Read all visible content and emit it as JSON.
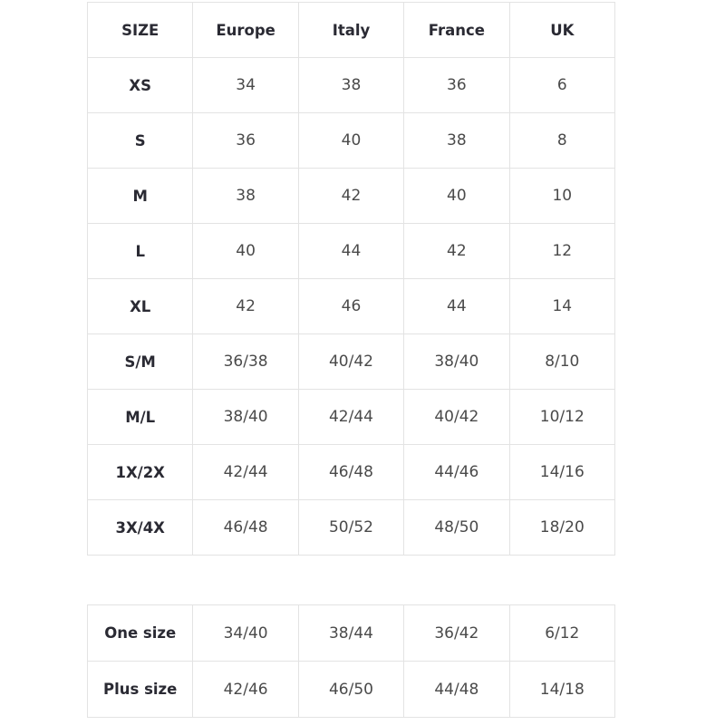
{
  "size_table": {
    "header": [
      "SIZE",
      "Europe",
      "Italy",
      "France",
      "UK"
    ],
    "rows": [
      [
        "XS",
        "34",
        "38",
        "36",
        "6"
      ],
      [
        "S",
        "36",
        "40",
        "38",
        "8"
      ],
      [
        "M",
        "38",
        "42",
        "40",
        "10"
      ],
      [
        "L",
        "40",
        "44",
        "42",
        "12"
      ],
      [
        "XL",
        "42",
        "46",
        "44",
        "14"
      ],
      [
        "S/M",
        "36/38",
        "40/42",
        "38/40",
        "8/10"
      ],
      [
        "M/L",
        "38/40",
        "42/44",
        "40/42",
        "10/12"
      ],
      [
        "1X/2X",
        "42/44",
        "46/48",
        "44/46",
        "14/16"
      ],
      [
        "3X/4X",
        "46/48",
        "50/52",
        "48/50",
        "18/20"
      ]
    ]
  },
  "special_table": {
    "rows": [
      [
        "One size",
        "34/40",
        "38/44",
        "36/42",
        "6/12"
      ],
      [
        "Plus size",
        "42/46",
        "46/50",
        "44/48",
        "14/18"
      ]
    ]
  }
}
